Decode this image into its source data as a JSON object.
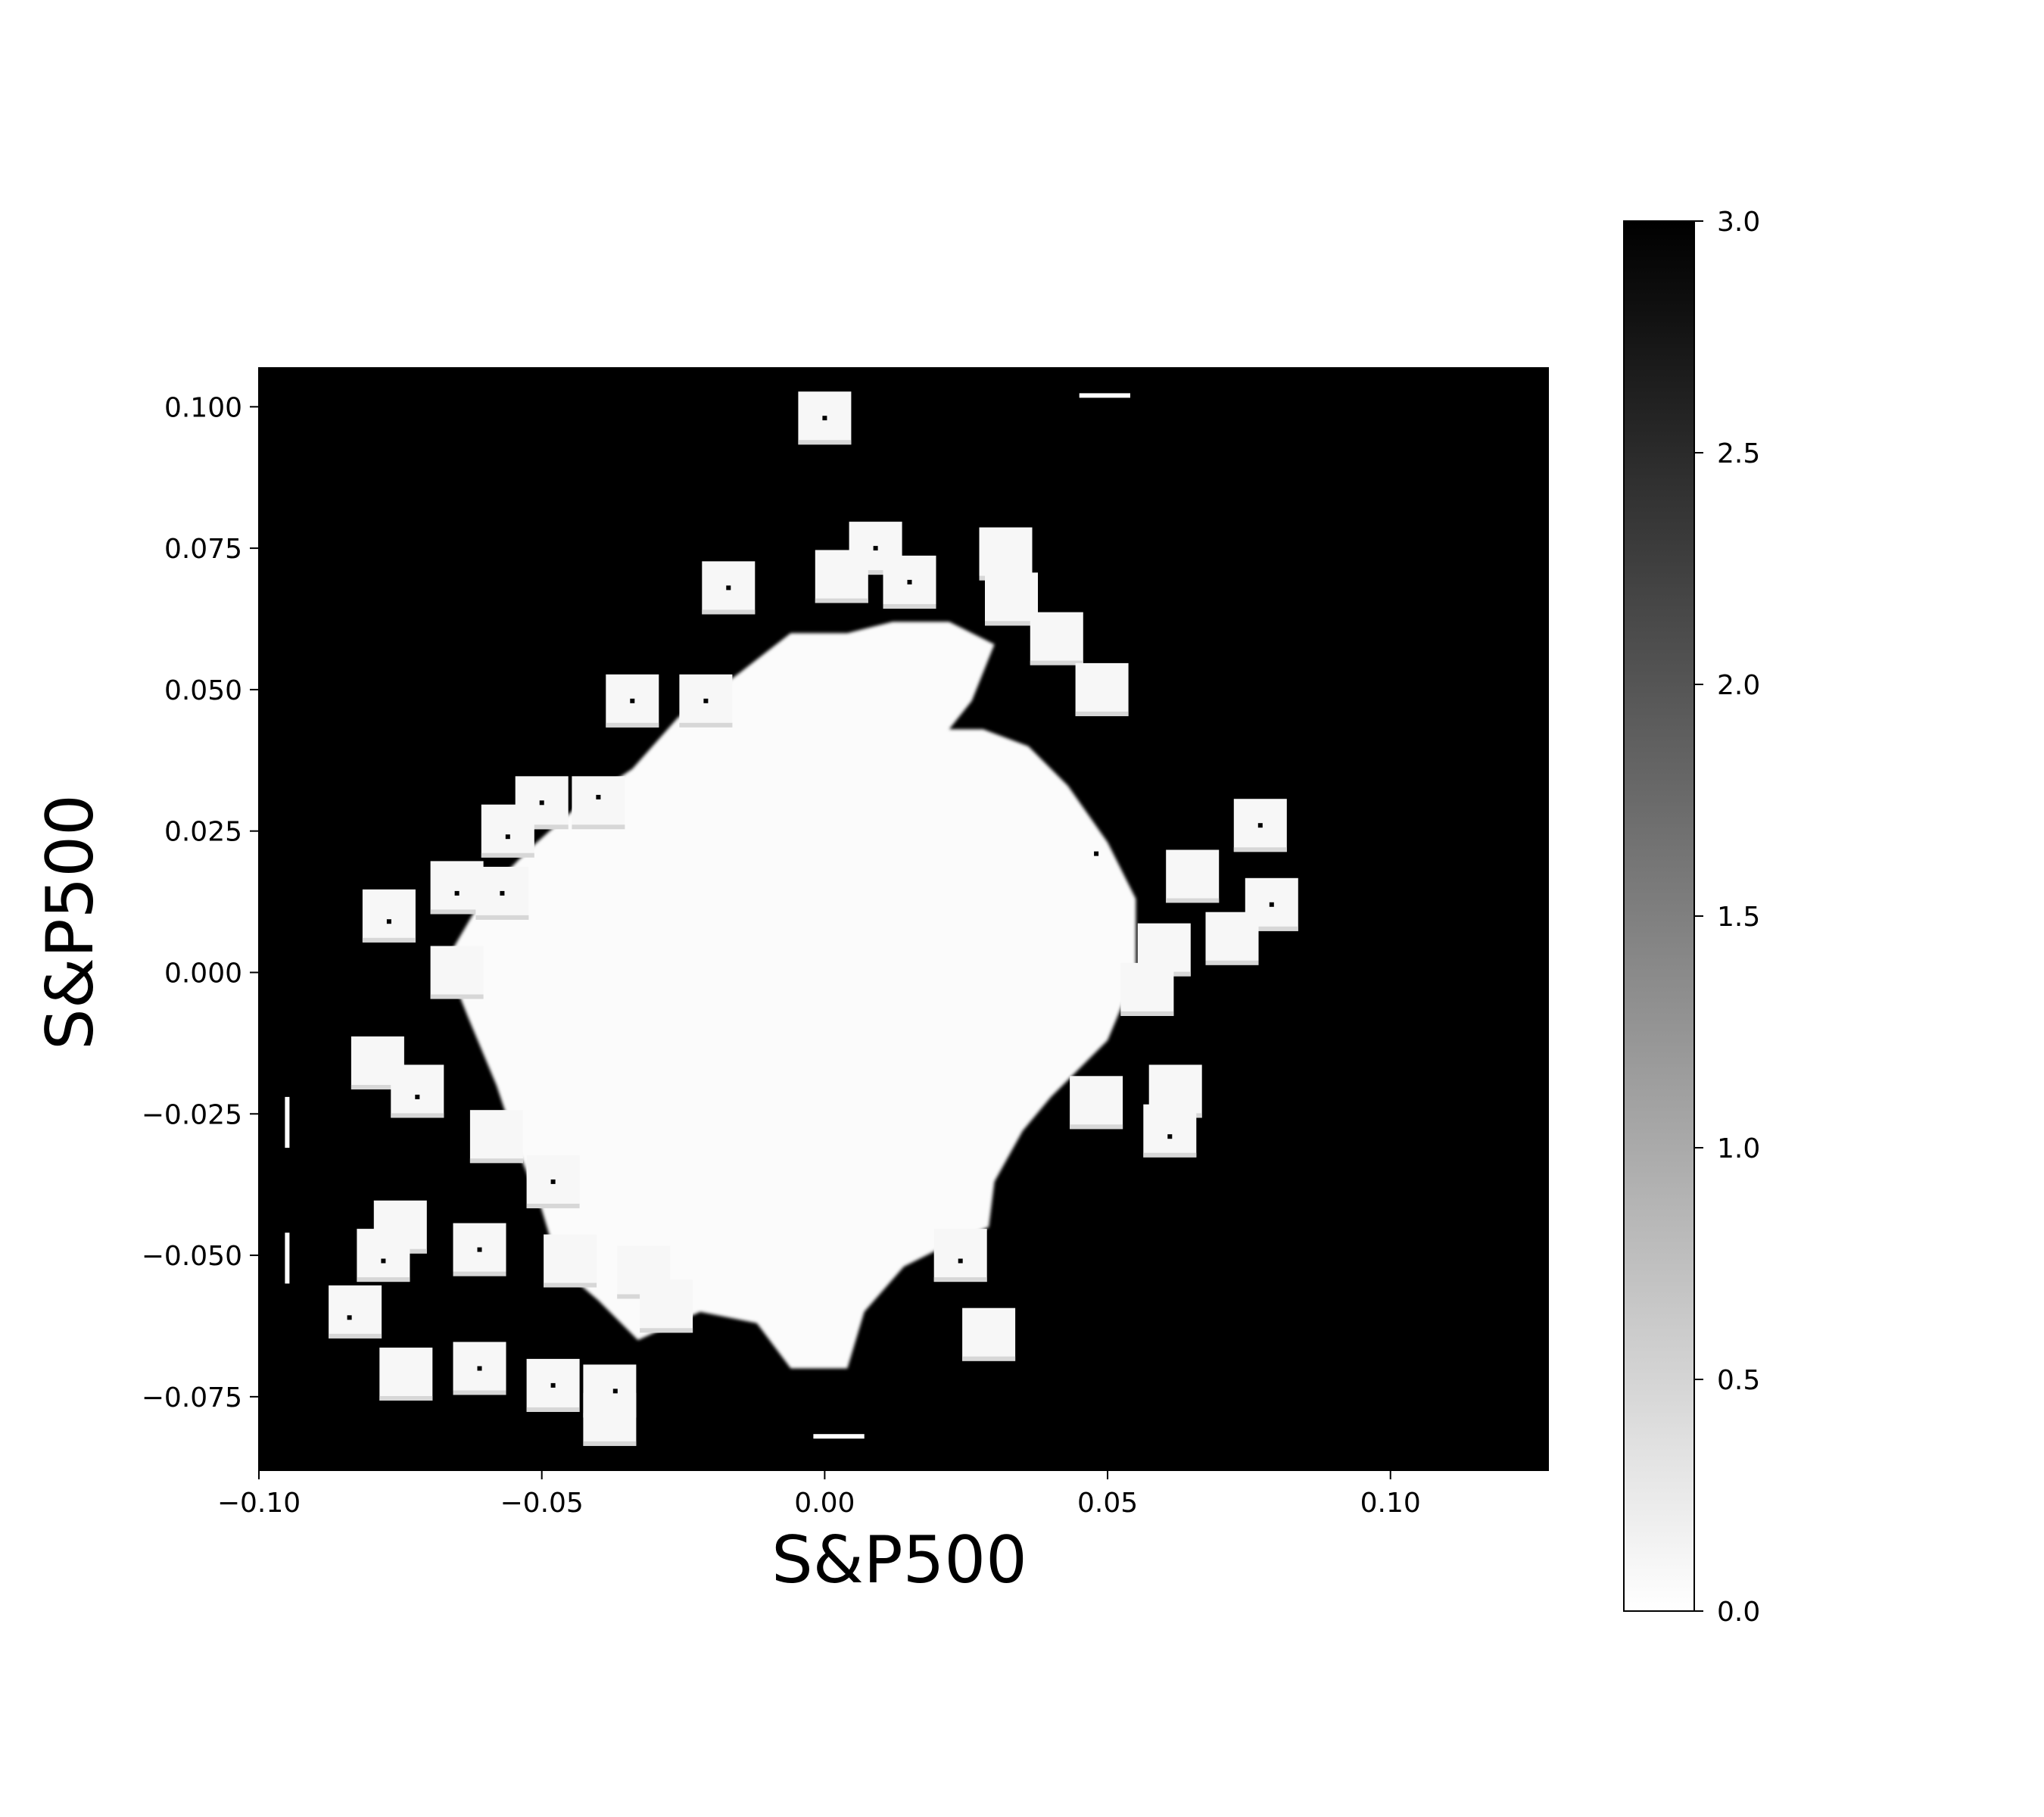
{
  "chart_data": {
    "type": "heatmap",
    "title": "",
    "xlabel": "S&P500",
    "ylabel": "S&P500",
    "xlim": [
      -0.1,
      0.128
    ],
    "ylim": [
      -0.088,
      0.107
    ],
    "x_ticks": [
      {
        "value": -0.1,
        "label": "−0.10"
      },
      {
        "value": -0.05,
        "label": "−0.05"
      },
      {
        "value": 0.0,
        "label": "0.00"
      },
      {
        "value": 0.05,
        "label": "0.05"
      },
      {
        "value": 0.1,
        "label": "0.10"
      }
    ],
    "y_ticks": [
      {
        "value": 0.1,
        "label": "0.100"
      },
      {
        "value": 0.075,
        "label": "0.075"
      },
      {
        "value": 0.05,
        "label": "0.050"
      },
      {
        "value": 0.025,
        "label": "0.025"
      },
      {
        "value": 0.0,
        "label": "0.000"
      },
      {
        "value": -0.025,
        "label": "−0.025"
      },
      {
        "value": -0.05,
        "label": "−0.050"
      },
      {
        "value": -0.075,
        "label": "−0.075"
      }
    ],
    "colorbar": {
      "range": [
        0.0,
        3.0
      ],
      "colormap": "gray_r",
      "ticks": [
        {
          "value": 0.0,
          "label": "0.0"
        },
        {
          "value": 0.5,
          "label": "0.5"
        },
        {
          "value": 1.0,
          "label": "1.0"
        },
        {
          "value": 1.5,
          "label": "1.5"
        },
        {
          "value": 2.0,
          "label": "2.0"
        },
        {
          "value": 2.5,
          "label": "2.5"
        },
        {
          "value": 3.0,
          "label": "3.0"
        }
      ]
    },
    "background_value": 3.0,
    "central_blob": {
      "value": 0.05,
      "outline": [
        [
          -0.034,
          0.036
        ],
        [
          -0.026,
          0.045
        ],
        [
          -0.015,
          0.053
        ],
        [
          -0.006,
          0.06
        ],
        [
          0.004,
          0.06
        ],
        [
          0.012,
          0.062
        ],
        [
          0.022,
          0.062
        ],
        [
          0.03,
          0.058
        ],
        [
          0.026,
          0.048
        ],
        [
          0.022,
          0.043
        ],
        [
          0.028,
          0.043
        ],
        [
          0.036,
          0.04
        ],
        [
          0.043,
          0.033
        ],
        [
          0.05,
          0.023
        ],
        [
          0.055,
          0.013
        ],
        [
          0.055,
          0.0
        ],
        [
          0.05,
          -0.012
        ],
        [
          0.04,
          -0.022
        ],
        [
          0.035,
          -0.028
        ],
        [
          0.03,
          -0.037
        ],
        [
          0.029,
          -0.045
        ],
        [
          0.022,
          -0.048
        ],
        [
          0.014,
          -0.052
        ],
        [
          0.007,
          -0.06
        ],
        [
          0.004,
          -0.07
        ],
        [
          -0.006,
          -0.07
        ],
        [
          -0.012,
          -0.062
        ],
        [
          -0.022,
          -0.06
        ],
        [
          -0.033,
          -0.065
        ],
        [
          -0.04,
          -0.058
        ],
        [
          -0.047,
          -0.052
        ],
        [
          -0.05,
          -0.042
        ],
        [
          -0.054,
          -0.032
        ],
        [
          -0.058,
          -0.02
        ],
        [
          -0.063,
          -0.008
        ],
        [
          -0.067,
          0.002
        ],
        [
          -0.06,
          0.014
        ],
        [
          -0.052,
          0.022
        ],
        [
          -0.043,
          0.03
        ]
      ]
    },
    "outlier_squares": [
      {
        "x": 0.0,
        "y": 0.098,
        "value": 0.1
      },
      {
        "x": 0.009,
        "y": 0.075,
        "value": 0.1
      },
      {
        "x": 0.015,
        "y": 0.069,
        "value": 0.1
      },
      {
        "x": -0.017,
        "y": 0.068,
        "value": 0.1
      },
      {
        "x": 0.003,
        "y": 0.07,
        "value": 0.1
      },
      {
        "x": 0.032,
        "y": 0.074,
        "value": 0.1
      },
      {
        "x": 0.033,
        "y": 0.066,
        "value": 0.1
      },
      {
        "x": 0.041,
        "y": 0.059,
        "value": 0.1
      },
      {
        "x": 0.049,
        "y": 0.05,
        "value": 0.1
      },
      {
        "x": -0.034,
        "y": 0.048,
        "value": 0.1
      },
      {
        "x": -0.021,
        "y": 0.048,
        "value": 0.1
      },
      {
        "x": -0.05,
        "y": 0.03,
        "value": 0.1
      },
      {
        "x": -0.056,
        "y": 0.025,
        "value": 0.1
      },
      {
        "x": -0.04,
        "y": 0.03,
        "value": 0.1
      },
      {
        "x": -0.065,
        "y": 0.015,
        "value": 0.1
      },
      {
        "x": -0.057,
        "y": 0.014,
        "value": 0.1
      },
      {
        "x": -0.077,
        "y": 0.01,
        "value": 0.1
      },
      {
        "x": 0.077,
        "y": 0.026,
        "value": 0.1
      },
      {
        "x": 0.079,
        "y": 0.012,
        "value": 0.1
      },
      {
        "x": 0.065,
        "y": 0.017,
        "value": 0.1
      },
      {
        "x": 0.072,
        "y": 0.006,
        "value": 0.1
      },
      {
        "x": 0.06,
        "y": 0.004,
        "value": 0.1
      },
      {
        "x": 0.057,
        "y": -0.003,
        "value": 0.1
      },
      {
        "x": -0.065,
        "y": 0.0,
        "value": 0.1
      },
      {
        "x": -0.079,
        "y": -0.016,
        "value": 0.1
      },
      {
        "x": -0.072,
        "y": -0.021,
        "value": 0.1
      },
      {
        "x": -0.058,
        "y": -0.029,
        "value": 0.1
      },
      {
        "x": -0.048,
        "y": -0.037,
        "value": 0.1
      },
      {
        "x": 0.048,
        "y": -0.023,
        "value": 0.1
      },
      {
        "x": 0.062,
        "y": -0.021,
        "value": 0.1
      },
      {
        "x": 0.061,
        "y": -0.028,
        "value": 0.1
      },
      {
        "x": -0.075,
        "y": -0.045,
        "value": 0.1
      },
      {
        "x": -0.078,
        "y": -0.05,
        "value": 0.1
      },
      {
        "x": -0.061,
        "y": -0.049,
        "value": 0.1
      },
      {
        "x": -0.045,
        "y": -0.051,
        "value": 0.1
      },
      {
        "x": -0.032,
        "y": -0.053,
        "value": 0.1
      },
      {
        "x": -0.028,
        "y": -0.059,
        "value": 0.1
      },
      {
        "x": 0.024,
        "y": -0.05,
        "value": 0.1
      },
      {
        "x": 0.029,
        "y": -0.064,
        "value": 0.1
      },
      {
        "x": -0.083,
        "y": -0.06,
        "value": 0.1
      },
      {
        "x": -0.074,
        "y": -0.071,
        "value": 0.1
      },
      {
        "x": -0.061,
        "y": -0.07,
        "value": 0.1
      },
      {
        "x": -0.048,
        "y": -0.073,
        "value": 0.1
      },
      {
        "x": -0.038,
        "y": -0.074,
        "value": 0.1
      },
      {
        "x": -0.038,
        "y": -0.079,
        "value": 0.1
      }
    ],
    "center_dots": [
      [
        0.0,
        0.098
      ],
      [
        0.009,
        0.075
      ],
      [
        0.015,
        0.069
      ],
      [
        -0.017,
        0.068
      ],
      [
        -0.034,
        0.048
      ],
      [
        -0.021,
        0.048
      ],
      [
        -0.05,
        0.03
      ],
      [
        -0.056,
        0.024
      ],
      [
        -0.04,
        0.031
      ],
      [
        -0.065,
        0.014
      ],
      [
        -0.057,
        0.014
      ],
      [
        -0.077,
        0.009
      ],
      [
        0.077,
        0.026
      ],
      [
        0.079,
        0.012
      ],
      [
        0.048,
        0.021
      ],
      [
        -0.072,
        -0.022
      ],
      [
        -0.048,
        -0.037
      ],
      [
        0.061,
        -0.029
      ],
      [
        -0.078,
        -0.051
      ],
      [
        -0.061,
        -0.049
      ],
      [
        0.024,
        -0.051
      ],
      [
        -0.084,
        -0.061
      ],
      [
        -0.061,
        -0.07
      ],
      [
        -0.048,
        -0.073
      ],
      [
        -0.037,
        -0.074
      ]
    ],
    "marks": [
      {
        "type": "h",
        "x1": 0.045,
        "x2": 0.054,
        "y": 0.102
      },
      {
        "type": "h",
        "x1": -0.002,
        "x2": 0.007,
        "y": -0.082
      },
      {
        "type": "v",
        "x": -0.095,
        "y1": -0.022,
        "y2": -0.031
      },
      {
        "type": "v",
        "x": -0.095,
        "y1": -0.046,
        "y2": -0.055
      }
    ]
  }
}
